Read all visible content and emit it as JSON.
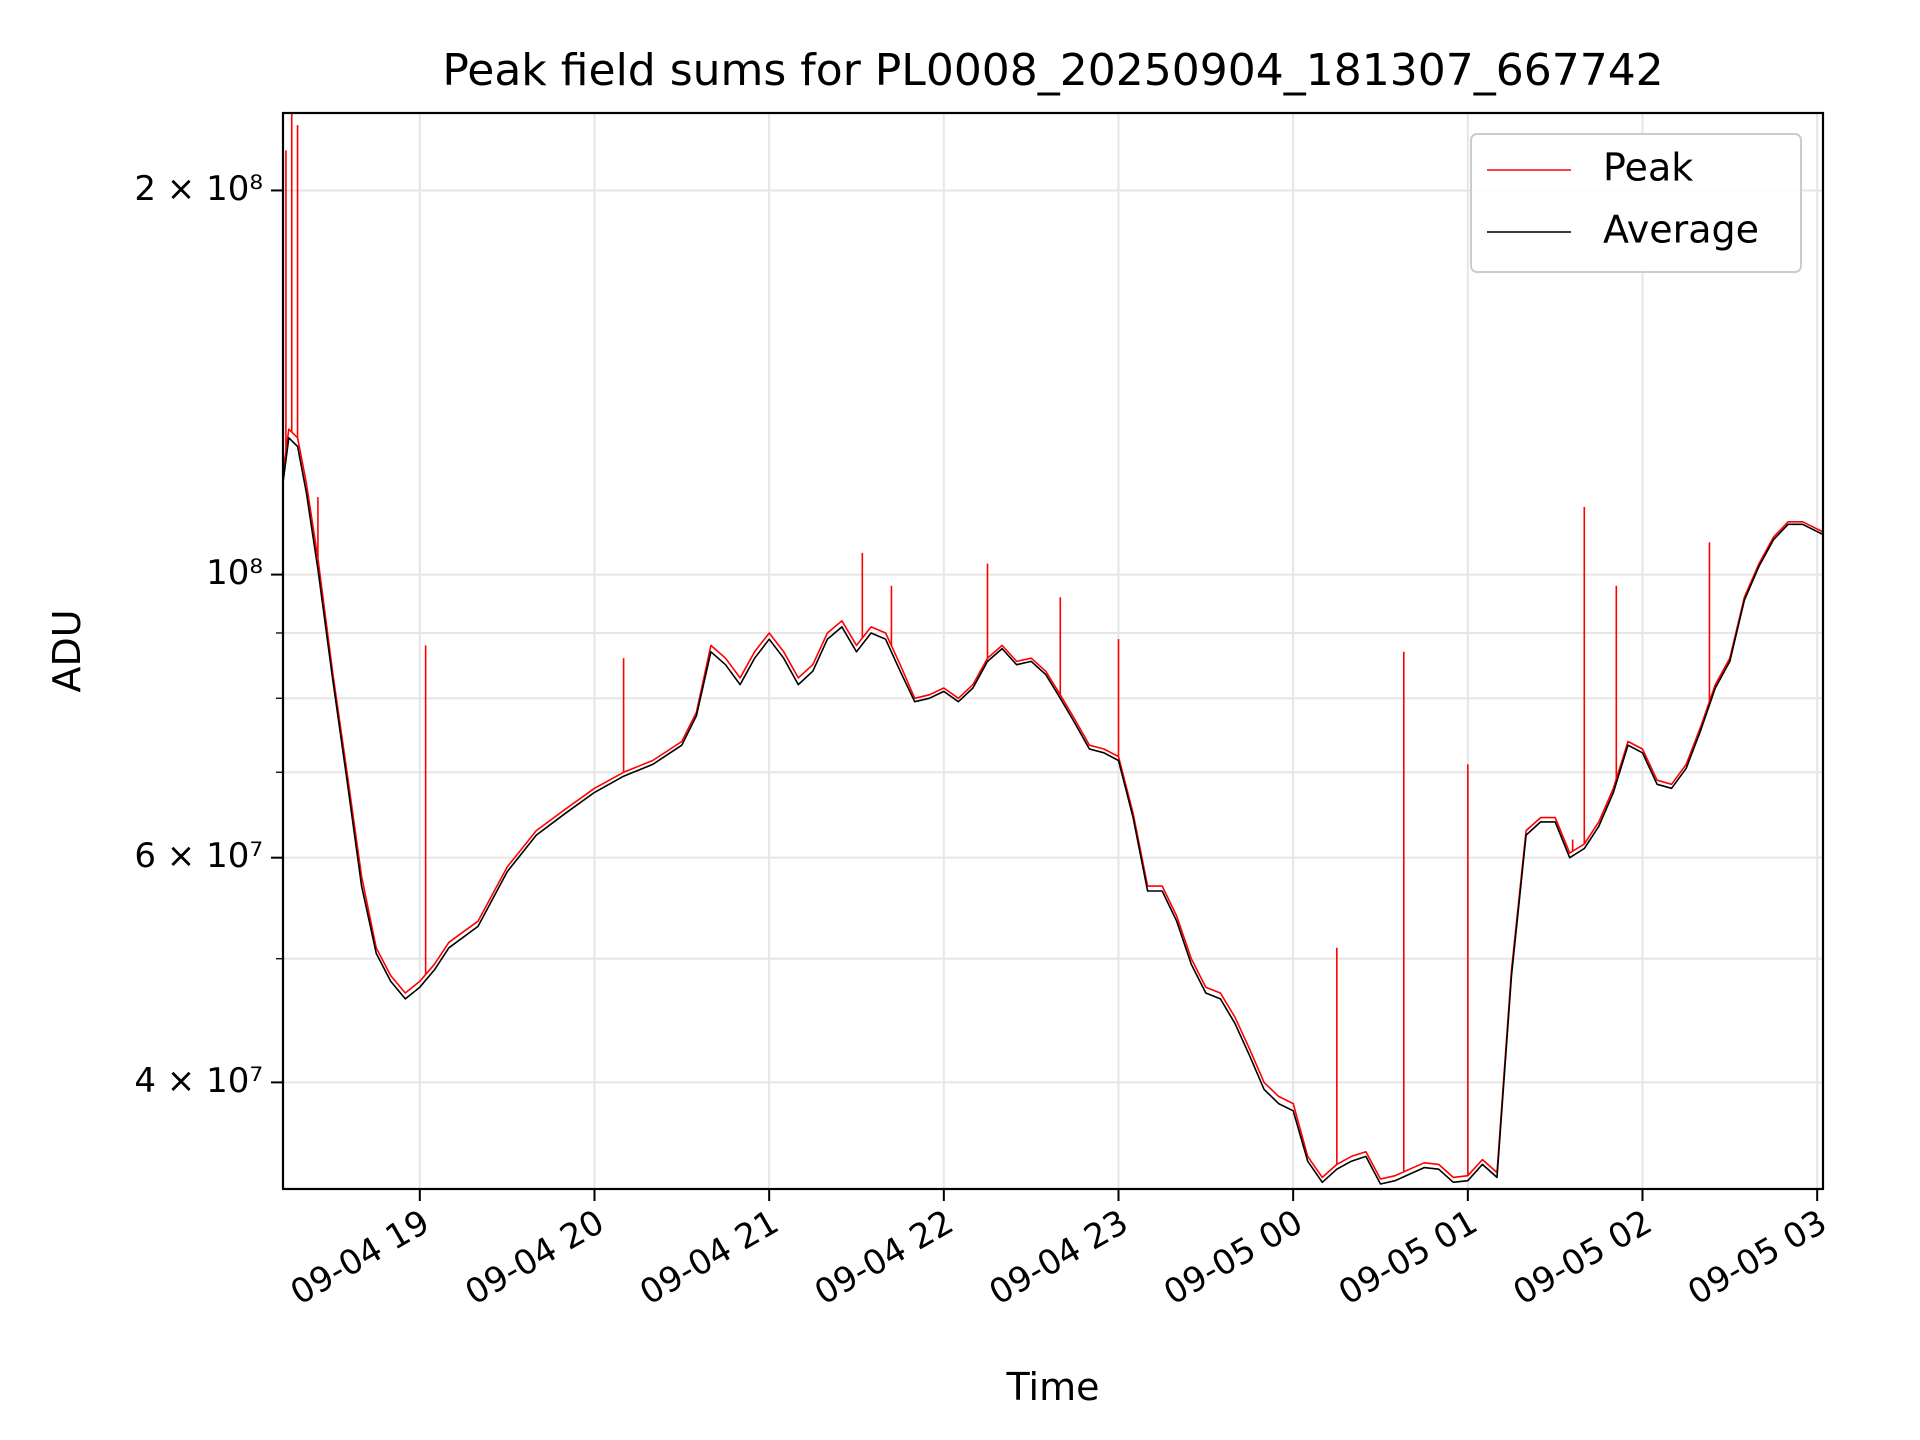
{
  "chart_data": {
    "type": "line",
    "title": "Peak field sums for PL0008_20250904_181307_667742",
    "xlabel": "Time",
    "ylabel": "ADU",
    "y_scale": "log",
    "grid": true,
    "legend_position": "top-right",
    "xlim": [
      "2025-09-04 18:13",
      "2025-09-05 03:02"
    ],
    "ylim": [
      33000000,
      230000000
    ],
    "x_ticks": [
      {
        "value": "2025-09-04 19:00",
        "label": "09-04 19"
      },
      {
        "value": "2025-09-04 20:00",
        "label": "09-04 20"
      },
      {
        "value": "2025-09-04 21:00",
        "label": "09-04 21"
      },
      {
        "value": "2025-09-04 22:00",
        "label": "09-04 22"
      },
      {
        "value": "2025-09-04 23:00",
        "label": "09-04 23"
      },
      {
        "value": "2025-09-05 00:00",
        "label": "09-05 00"
      },
      {
        "value": "2025-09-05 01:00",
        "label": "09-05 01"
      },
      {
        "value": "2025-09-05 02:00",
        "label": "09-05 02"
      },
      {
        "value": "2025-09-05 03:00",
        "label": "09-05 03"
      }
    ],
    "y_major_ticks": [
      {
        "value": 40000000,
        "label": "4 × 10⁷"
      },
      {
        "value": 60000000,
        "label": "6 × 10⁷"
      },
      {
        "value": 100000000,
        "label": "10⁸"
      },
      {
        "value": 200000000,
        "label": "2 × 10⁸"
      }
    ],
    "y_minor_ticks": [
      50000000,
      70000000,
      80000000,
      90000000
    ],
    "x": [
      "2025-09-04 18:13",
      "2025-09-04 18:15",
      "2025-09-04 18:18",
      "2025-09-04 18:21",
      "2025-09-04 18:25",
      "2025-09-04 18:30",
      "2025-09-04 18:35",
      "2025-09-04 18:40",
      "2025-09-04 18:45",
      "2025-09-04 18:50",
      "2025-09-04 18:55",
      "2025-09-04 19:00",
      "2025-09-04 19:05",
      "2025-09-04 19:10",
      "2025-09-04 19:20",
      "2025-09-04 19:30",
      "2025-09-04 19:40",
      "2025-09-04 19:50",
      "2025-09-04 20:00",
      "2025-09-04 20:10",
      "2025-09-04 20:20",
      "2025-09-04 20:30",
      "2025-09-04 20:35",
      "2025-09-04 20:40",
      "2025-09-04 20:45",
      "2025-09-04 20:50",
      "2025-09-04 20:55",
      "2025-09-04 21:00",
      "2025-09-04 21:05",
      "2025-09-04 21:10",
      "2025-09-04 21:15",
      "2025-09-04 21:20",
      "2025-09-04 21:25",
      "2025-09-04 21:30",
      "2025-09-04 21:35",
      "2025-09-04 21:40",
      "2025-09-04 21:45",
      "2025-09-04 21:50",
      "2025-09-04 21:55",
      "2025-09-04 22:00",
      "2025-09-04 22:05",
      "2025-09-04 22:10",
      "2025-09-04 22:15",
      "2025-09-04 22:20",
      "2025-09-04 22:25",
      "2025-09-04 22:30",
      "2025-09-04 22:35",
      "2025-09-04 22:40",
      "2025-09-04 22:45",
      "2025-09-04 22:50",
      "2025-09-04 22:55",
      "2025-09-04 23:00",
      "2025-09-04 23:05",
      "2025-09-04 23:10",
      "2025-09-04 23:15",
      "2025-09-04 23:20",
      "2025-09-04 23:25",
      "2025-09-04 23:30",
      "2025-09-04 23:35",
      "2025-09-04 23:40",
      "2025-09-04 23:45",
      "2025-09-04 23:50",
      "2025-09-04 23:55",
      "2025-09-05 00:00",
      "2025-09-05 00:05",
      "2025-09-05 00:10",
      "2025-09-05 00:15",
      "2025-09-05 00:20",
      "2025-09-05 00:25",
      "2025-09-05 00:30",
      "2025-09-05 00:35",
      "2025-09-05 00:40",
      "2025-09-05 00:45",
      "2025-09-05 00:50",
      "2025-09-05 00:55",
      "2025-09-05 01:00",
      "2025-09-05 01:05",
      "2025-09-05 01:10",
      "2025-09-05 01:15",
      "2025-09-05 01:20",
      "2025-09-05 01:25",
      "2025-09-05 01:30",
      "2025-09-05 01:35",
      "2025-09-05 01:40",
      "2025-09-05 01:45",
      "2025-09-05 01:50",
      "2025-09-05 01:55",
      "2025-09-05 02:00",
      "2025-09-05 02:05",
      "2025-09-05 02:10",
      "2025-09-05 02:15",
      "2025-09-05 02:20",
      "2025-09-05 02:25",
      "2025-09-05 02:30",
      "2025-09-05 02:35",
      "2025-09-05 02:40",
      "2025-09-05 02:45",
      "2025-09-05 02:50",
      "2025-09-05 02:55",
      "2025-09-05 03:02"
    ],
    "series": [
      {
        "name": "Peak",
        "color": "#ff0000",
        "values": [
          120000000,
          130000000,
          128000000,
          118000000,
          103000000,
          84000000,
          70000000,
          58000000,
          51000000,
          48500000,
          47000000,
          48000000,
          49500000,
          51500000,
          53500000,
          59000000,
          63000000,
          65500000,
          68000000,
          70000000,
          71500000,
          74000000,
          78000000,
          88000000,
          86000000,
          83000000,
          87000000,
          90000000,
          87000000,
          83000000,
          85000000,
          90000000,
          92000000,
          88000000,
          91000000,
          90000000,
          85000000,
          80000000,
          80500000,
          81500000,
          80000000,
          82000000,
          86000000,
          88000000,
          85500000,
          86000000,
          84000000,
          80500000,
          77000000,
          73500000,
          73000000,
          72000000,
          65000000,
          57000000,
          57000000,
          54000000,
          50000000,
          47500000,
          47000000,
          45000000,
          42500000,
          40000000,
          39000000,
          38500000,
          35000000,
          33700000,
          34500000,
          35000000,
          35300000,
          33600000,
          33800000,
          34200000,
          34600000,
          34500000,
          33700000,
          33800000,
          34800000,
          34000000,
          49000000,
          63000000,
          64500000,
          64500000,
          60500000,
          61500000,
          64000000,
          68000000,
          74000000,
          73000000,
          69000000,
          68500000,
          71000000,
          76000000,
          82000000,
          86000000,
          96000000,
          102000000,
          107000000,
          110000000,
          110000000,
          108000000
        ]
      },
      {
        "name": "Average",
        "color": "#000000",
        "values": [
          118000000,
          128000000,
          126000000,
          116000000,
          101000000,
          83000000,
          69000000,
          57000000,
          50500000,
          48000000,
          46500000,
          47500000,
          49000000,
          51000000,
          53000000,
          58500000,
          62500000,
          65000000,
          67500000,
          69500000,
          71000000,
          73500000,
          77500000,
          87000000,
          85000000,
          82000000,
          86000000,
          89000000,
          86000000,
          82000000,
          84000000,
          89000000,
          91000000,
          87000000,
          90000000,
          89000000,
          84000000,
          79500000,
          80000000,
          81000000,
          79500000,
          81500000,
          85500000,
          87500000,
          85000000,
          85500000,
          83500000,
          80000000,
          76500000,
          73000000,
          72500000,
          71500000,
          64500000,
          56500000,
          56500000,
          53500000,
          49500000,
          47000000,
          46500000,
          44500000,
          42000000,
          39500000,
          38500000,
          38000000,
          34700000,
          33400000,
          34200000,
          34700000,
          35000000,
          33300000,
          33500000,
          33900000,
          34300000,
          34200000,
          33400000,
          33500000,
          34500000,
          33700000,
          48500000,
          62500000,
          64000000,
          64000000,
          60000000,
          61000000,
          63500000,
          67500000,
          73500000,
          72500000,
          68500000,
          68000000,
          70500000,
          75500000,
          81500000,
          85500000,
          95500000,
          101500000,
          106500000,
          109500000,
          109500000,
          107500000
        ]
      }
    ],
    "spikes": [
      {
        "series": "Peak",
        "x": "2025-09-04 18:14",
        "value": 215000000
      },
      {
        "series": "Peak",
        "x": "2025-09-04 18:16",
        "value": 230000000
      },
      {
        "series": "Peak",
        "x": "2025-09-04 18:18",
        "value": 225000000
      },
      {
        "series": "Peak",
        "x": "2025-09-04 18:25",
        "value": 115000000
      },
      {
        "series": "Peak",
        "x": "2025-09-04 19:02",
        "value": 88000000
      },
      {
        "series": "Peak",
        "x": "2025-09-04 20:10",
        "value": 86000000
      },
      {
        "series": "Peak",
        "x": "2025-09-04 21:32",
        "value": 104000000
      },
      {
        "series": "Peak",
        "x": "2025-09-04 21:42",
        "value": 98000000
      },
      {
        "series": "Peak",
        "x": "2025-09-04 22:15",
        "value": 102000000
      },
      {
        "series": "Peak",
        "x": "2025-09-04 22:40",
        "value": 96000000
      },
      {
        "series": "Peak",
        "x": "2025-09-04 23:00",
        "value": 89000000
      },
      {
        "series": "Peak",
        "x": "2025-09-05 00:15",
        "value": 51000000
      },
      {
        "series": "Peak",
        "x": "2025-09-05 00:38",
        "value": 87000000
      },
      {
        "series": "Peak",
        "x": "2025-09-05 01:00",
        "value": 71000000
      },
      {
        "series": "Peak",
        "x": "2025-09-05 01:36",
        "value": 62000000
      },
      {
        "series": "Peak",
        "x": "2025-09-05 01:40",
        "value": 113000000
      },
      {
        "series": "Peak",
        "x": "2025-09-05 01:51",
        "value": 98000000
      },
      {
        "series": "Peak",
        "x": "2025-09-05 02:23",
        "value": 106000000
      }
    ]
  }
}
